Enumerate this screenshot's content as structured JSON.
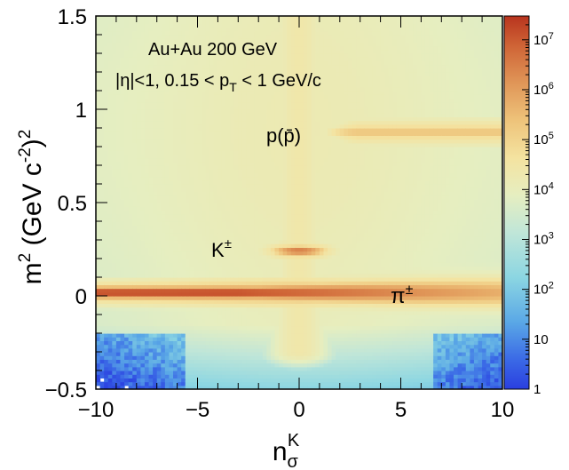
{
  "chart_data": {
    "type": "heatmap",
    "title": "",
    "annotations": {
      "system": "Au+Au 200 GeV",
      "cuts_prefix": "|η|<1, 0.15 < p",
      "cuts_sub": "T",
      "cuts_suffix": " < 1 GeV/c",
      "proton": "p(p̄)",
      "kaon": "K",
      "kaon_sup": "±",
      "pion": "π",
      "pion_sup": "±"
    },
    "x_axis": {
      "label": "n",
      "label_sub": "σ",
      "label_sup": "K",
      "range": [
        -10,
        10
      ],
      "ticks": [
        -10,
        -5,
        0,
        5,
        10
      ],
      "tick_labels": [
        "−10",
        "−5",
        "0",
        "5",
        "10"
      ]
    },
    "y_axis": {
      "label": "m",
      "label_sup": "2",
      "label_mid": " (GeV c",
      "label_sup2": "-2",
      "label_end": ")",
      "label_sup3": "2",
      "range": [
        -0.5,
        1.5
      ],
      "ticks": [
        -0.5,
        0,
        0.5,
        1,
        1.5
      ],
      "tick_labels": [
        "−0.5",
        "0",
        "0.5",
        "1",
        "1.5"
      ]
    },
    "colorbar": {
      "scale": "log",
      "range": [
        1,
        30000000
      ],
      "labels": [
        {
          "value": 1,
          "base": "1",
          "exp": ""
        },
        {
          "value": 10,
          "base": "10",
          "exp": ""
        },
        {
          "value": 100,
          "base": "10",
          "exp": "2"
        },
        {
          "value": 1000,
          "base": "10",
          "exp": "3"
        },
        {
          "value": 10000,
          "base": "10",
          "exp": "4"
        },
        {
          "value": 100000,
          "base": "10",
          "exp": "5"
        },
        {
          "value": 1000000,
          "base": "10",
          "exp": "6"
        },
        {
          "value": 10000000,
          "base": "10",
          "exp": "7"
        }
      ]
    },
    "bands": [
      {
        "name": "pion",
        "m2": 0.0195,
        "x_center": -10,
        "peak_log10": 7.3
      },
      {
        "name": "kaon",
        "m2": 0.2437,
        "x_center": 0,
        "peak_log10": 6.5
      },
      {
        "name": "proton",
        "m2": 0.88,
        "x_center": 6,
        "peak_log10": 5.3
      }
    ]
  }
}
